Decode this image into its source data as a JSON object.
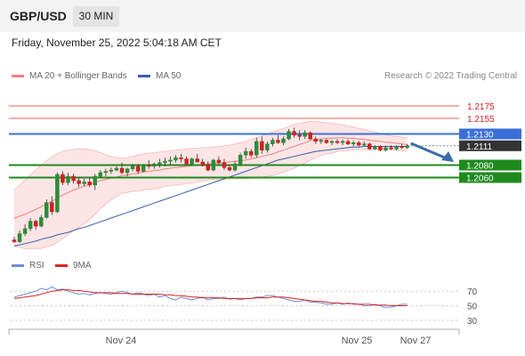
{
  "header": {
    "symbol": "GBP/USD",
    "timeframe": "30 MIN"
  },
  "datetime": "Friday, November 25, 2022 5:04:18 AM CET",
  "legend": {
    "ma20": "MA 20 + Bollinger Bands",
    "ma50": "MA 50",
    "rsi": "RSI",
    "rsi_ma": "9MA",
    "credit": "Research © 2022 Trading Central"
  },
  "colors": {
    "up": "#2e8b3a",
    "down": "#d02020",
    "ma20": "#f08080",
    "ma50": "#3a5ea8",
    "band_fill": "#fde0e0",
    "resistance": "#f08070",
    "pivot": "#3a6fd8",
    "support": "#1e8a1e",
    "current": "#333333",
    "rsi": "#6b8fd6",
    "rsi_ma": "#e02020",
    "arrow": "#3a6ea8"
  },
  "chart_data": [
    {
      "type": "candlestick",
      "symbol": "GBP/USD",
      "interval": "30 MIN",
      "ylim": [
        1.1945,
        1.2205
      ],
      "x_ticks": [
        "Nov 24",
        "Nov 25",
        "Nov 27"
      ],
      "levels": [
        {
          "value": 1.2175,
          "label": "1.2175",
          "kind": "resistance"
        },
        {
          "value": 1.2155,
          "label": "1.2155",
          "kind": "resistance"
        },
        {
          "value": 1.213,
          "label": "1.2130",
          "kind": "pivot"
        },
        {
          "value": 1.2111,
          "label": "1.2111",
          "kind": "current"
        },
        {
          "value": 1.208,
          "label": "1.2080",
          "kind": "support"
        },
        {
          "value": 1.206,
          "label": "1.2060",
          "kind": "support"
        }
      ],
      "candles": [
        [
          1.196,
          1.1965,
          1.1955,
          1.1957
        ],
        [
          1.1957,
          1.1975,
          1.1955,
          1.197
        ],
        [
          1.197,
          1.1985,
          1.1966,
          1.1978
        ],
        [
          1.1978,
          1.1995,
          1.1974,
          1.199
        ],
        [
          1.199,
          1.1992,
          1.1976,
          1.1982
        ],
        [
          1.1982,
          1.2,
          1.198,
          1.1996
        ],
        [
          1.1996,
          1.2025,
          1.1994,
          1.202
        ],
        [
          1.202,
          1.203,
          1.2,
          1.2005
        ],
        [
          1.2005,
          1.2068,
          1.2003,
          1.2065
        ],
        [
          1.2065,
          1.207,
          1.2048,
          1.2052
        ],
        [
          1.2052,
          1.2068,
          1.2048,
          1.2062
        ],
        [
          1.2062,
          1.2066,
          1.205,
          1.2055
        ],
        [
          1.2055,
          1.206,
          1.2045,
          1.205
        ],
        [
          1.205,
          1.2058,
          1.2046,
          1.2053
        ],
        [
          1.2053,
          1.206,
          1.2045,
          1.2048
        ],
        [
          1.2048,
          1.2066,
          1.204,
          1.2062
        ],
        [
          1.2062,
          1.2072,
          1.206,
          1.2068
        ],
        [
          1.2068,
          1.2074,
          1.2062,
          1.207
        ],
        [
          1.207,
          1.2076,
          1.2066,
          1.2072
        ],
        [
          1.2072,
          1.2078,
          1.207,
          1.2075
        ],
        [
          1.2075,
          1.2084,
          1.2065,
          1.2068
        ],
        [
          1.2068,
          1.2076,
          1.2062,
          1.2074
        ],
        [
          1.2074,
          1.2082,
          1.207,
          1.2078
        ],
        [
          1.2078,
          1.2082,
          1.2066,
          1.207
        ],
        [
          1.207,
          1.2082,
          1.2068,
          1.208
        ],
        [
          1.208,
          1.2088,
          1.2074,
          1.2078
        ],
        [
          1.2078,
          1.2084,
          1.2074,
          1.2082
        ],
        [
          1.2082,
          1.209,
          1.2076,
          1.2084
        ],
        [
          1.2084,
          1.2092,
          1.2078,
          1.2086
        ],
        [
          1.2086,
          1.2094,
          1.208,
          1.2088
        ],
        [
          1.2088,
          1.2096,
          1.2084,
          1.2092
        ],
        [
          1.2092,
          1.2098,
          1.2084,
          1.209
        ],
        [
          1.209,
          1.2094,
          1.208,
          1.2082
        ],
        [
          1.2082,
          1.2092,
          1.208,
          1.209
        ],
        [
          1.209,
          1.2098,
          1.2084,
          1.2085
        ],
        [
          1.2085,
          1.209,
          1.2078,
          1.208
        ],
        [
          1.208,
          1.2086,
          1.207,
          1.2072
        ],
        [
          1.2072,
          1.209,
          1.207,
          1.2088
        ],
        [
          1.2088,
          1.2094,
          1.208,
          1.2084
        ],
        [
          1.2084,
          1.209,
          1.2072,
          1.2076
        ],
        [
          1.2076,
          1.208,
          1.207,
          1.2072
        ],
        [
          1.2072,
          1.2086,
          1.207,
          1.2082
        ],
        [
          1.2082,
          1.21,
          1.208,
          1.2096
        ],
        [
          1.2096,
          1.2108,
          1.209,
          1.2102
        ],
        [
          1.2102,
          1.2106,
          1.2092,
          1.2096
        ],
        [
          1.2096,
          1.2124,
          1.2092,
          1.2118
        ],
        [
          1.2118,
          1.2126,
          1.2098,
          1.2104
        ],
        [
          1.2104,
          1.2118,
          1.21,
          1.2114
        ],
        [
          1.2114,
          1.2124,
          1.211,
          1.212
        ],
        [
          1.212,
          1.2128,
          1.2114,
          1.2116
        ],
        [
          1.2116,
          1.2126,
          1.2112,
          1.2122
        ],
        [
          1.2122,
          1.2138,
          1.212,
          1.2134
        ],
        [
          1.2134,
          1.214,
          1.2124,
          1.2128
        ],
        [
          1.2128,
          1.2136,
          1.212,
          1.2126
        ],
        [
          1.2126,
          1.2136,
          1.2122,
          1.2132
        ],
        [
          1.2132,
          1.2134,
          1.212,
          1.2122
        ],
        [
          1.2122,
          1.2126,
          1.2114,
          1.2118
        ],
        [
          1.2118,
          1.2122,
          1.2114,
          1.212
        ],
        [
          1.212,
          1.2122,
          1.2114,
          1.2116
        ],
        [
          1.2116,
          1.212,
          1.2112,
          1.2118
        ],
        [
          1.2118,
          1.2122,
          1.2114,
          1.2116
        ],
        [
          1.2116,
          1.2121,
          1.2112,
          1.2118
        ],
        [
          1.2118,
          1.2121,
          1.2112,
          1.2114
        ],
        [
          1.2114,
          1.2119,
          1.211,
          1.2116
        ],
        [
          1.2116,
          1.2119,
          1.211,
          1.2112
        ],
        [
          1.2112,
          1.2118,
          1.211,
          1.2114
        ],
        [
          1.2114,
          1.2116,
          1.2104,
          1.2106
        ],
        [
          1.2106,
          1.2112,
          1.2104,
          1.211
        ],
        [
          1.211,
          1.2112,
          1.2102,
          1.2104
        ],
        [
          1.2104,
          1.2111,
          1.2102,
          1.2108
        ],
        [
          1.2108,
          1.2112,
          1.2104,
          1.2106
        ],
        [
          1.2106,
          1.2112,
          1.2104,
          1.211
        ],
        [
          1.211,
          1.2114,
          1.2106,
          1.2108
        ],
        [
          1.2108,
          1.2114,
          1.2106,
          1.2111
        ]
      ],
      "ma20": [
        1.1995,
        1.1998,
        1.2001,
        1.2005,
        1.2009,
        1.2013,
        1.2018,
        1.2022,
        1.2027,
        1.2032,
        1.2036,
        1.204,
        1.2043,
        1.2046,
        1.2049,
        1.2052,
        1.2055,
        1.2057,
        1.2059,
        1.2061,
        1.2063,
        1.2064,
        1.2066,
        1.2067,
        1.2069,
        1.207,
        1.2071,
        1.2072,
        1.2074,
        1.2075,
        1.2076,
        1.2077,
        1.2078,
        1.2079,
        1.208,
        1.2081,
        1.2082,
        1.2083,
        1.2083,
        1.2084,
        1.2085,
        1.2086,
        1.2087,
        1.2088,
        1.209,
        1.2092,
        1.2094,
        1.2096,
        1.2098,
        1.2101,
        1.2104,
        1.2107,
        1.211,
        1.2113,
        1.2116,
        1.2119,
        1.2121,
        1.2122,
        1.2123,
        1.2123,
        1.2124,
        1.2124,
        1.2123,
        1.2123,
        1.2122,
        1.2121,
        1.212,
        1.2119,
        1.2118,
        1.2117,
        1.2116,
        1.2115,
        1.2114,
        1.2113
      ],
      "bb_upper": [
        1.204,
        1.2048,
        1.2056,
        1.2064,
        1.2072,
        1.208,
        1.2087,
        1.2093,
        1.2098,
        1.2102,
        1.2104,
        1.2105,
        1.2106,
        1.2106,
        1.2105,
        1.2103,
        1.21,
        1.2097,
        1.2094,
        1.2092,
        1.2091,
        1.2092,
        1.2094,
        1.2096,
        1.2098,
        1.2099,
        1.21,
        1.2101,
        1.2102,
        1.2103,
        1.2104,
        1.2105,
        1.2106,
        1.2107,
        1.2107,
        1.2108,
        1.2108,
        1.2109,
        1.211,
        1.2111,
        1.2112,
        1.2114,
        1.2116,
        1.2118,
        1.2121,
        1.2124,
        1.2127,
        1.213,
        1.2133,
        1.2136,
        1.2139,
        1.2142,
        1.2145,
        1.2147,
        1.2149,
        1.215,
        1.215,
        1.2149,
        1.2148,
        1.2147,
        1.2146,
        1.2145,
        1.2143,
        1.2141,
        1.2139,
        1.2137,
        1.2135,
        1.2133,
        1.2131,
        1.2129,
        1.2127,
        1.2126,
        1.2125,
        1.2124
      ],
      "bb_lower": [
        1.195,
        1.1948,
        1.1946,
        1.1946,
        1.1946,
        1.1946,
        1.1949,
        1.1951,
        1.1956,
        1.1962,
        1.1968,
        1.1975,
        1.198,
        1.1986,
        1.1993,
        1.2001,
        1.201,
        1.2017,
        1.2024,
        1.203,
        1.2035,
        1.2036,
        1.2038,
        1.2038,
        1.204,
        1.2041,
        1.2042,
        1.2043,
        1.2046,
        1.2047,
        1.2048,
        1.2049,
        1.205,
        1.2051,
        1.2053,
        1.2054,
        1.2056,
        1.2057,
        1.2056,
        1.2057,
        1.2058,
        1.2058,
        1.2058,
        1.2058,
        1.2059,
        1.206,
        1.2061,
        1.2062,
        1.2063,
        1.2066,
        1.2069,
        1.2072,
        1.2075,
        1.2079,
        1.2083,
        1.2088,
        1.2092,
        1.2095,
        1.2098,
        1.2099,
        1.2102,
        1.2103,
        1.2103,
        1.2105,
        1.2105,
        1.2105,
        1.2105,
        1.2105,
        1.2105,
        1.2105,
        1.2105,
        1.2104,
        1.2103,
        1.2102
      ],
      "ma50": [
        1.195,
        1.1952,
        1.1954,
        1.1956,
        1.1958,
        1.1961,
        1.1963,
        1.1965,
        1.1968,
        1.197,
        1.1972,
        1.1975,
        1.1978,
        1.198,
        1.1983,
        1.1986,
        1.1989,
        1.1992,
        1.1995,
        1.1998,
        1.2001,
        1.2004,
        1.2007,
        1.201,
        1.2013,
        1.2016,
        1.2019,
        1.2022,
        1.2025,
        1.2028,
        1.2031,
        1.2034,
        1.2037,
        1.204,
        1.2043,
        1.2046,
        1.2049,
        1.2052,
        1.2055,
        1.2058,
        1.2061,
        1.2064,
        1.2067,
        1.207,
        1.2073,
        1.2076,
        1.2079,
        1.2082,
        1.2085,
        1.2088,
        1.209,
        1.2092,
        1.2094,
        1.2096,
        1.2098,
        1.21,
        1.2102,
        1.2103,
        1.2104,
        1.2105,
        1.2106,
        1.2107,
        1.2108,
        1.2109,
        1.2109,
        1.211,
        1.211,
        1.211,
        1.211,
        1.211,
        1.211,
        1.211,
        1.211,
        1.211
      ],
      "forecast": {
        "from": 1.2115,
        "to": 1.2085,
        "direction": "down"
      }
    },
    {
      "type": "line",
      "name": "RSI",
      "ylim": [
        20,
        85
      ],
      "y_ticks": [
        70,
        50,
        30
      ],
      "series": [
        {
          "name": "RSI",
          "values": [
            62,
            64,
            66,
            68,
            70,
            74,
            72,
            76,
            72,
            73,
            70,
            68,
            66,
            67,
            65,
            67,
            68,
            67,
            66,
            68,
            70,
            68,
            66,
            68,
            66,
            64,
            66,
            62,
            64,
            60,
            58,
            62,
            60,
            58,
            60,
            62,
            58,
            60,
            60,
            62,
            59,
            60,
            58,
            60,
            60,
            62,
            62,
            64,
            64,
            62,
            60,
            58,
            56,
            56,
            58,
            55,
            55,
            54,
            52,
            52,
            54,
            52,
            54,
            52,
            52,
            50,
            50,
            52,
            50,
            48,
            48,
            50,
            52,
            52
          ]
        },
        {
          "name": "9MA",
          "values": [
            60,
            61,
            62,
            63,
            64,
            66,
            68,
            70,
            71,
            72,
            72,
            71,
            71,
            70,
            69,
            68,
            68,
            68,
            68,
            67,
            67,
            67,
            66,
            66,
            66,
            66,
            66,
            66,
            65,
            65,
            64,
            64,
            63,
            62,
            62,
            61,
            61,
            61,
            61,
            60,
            60,
            60,
            60,
            60,
            60,
            61,
            61,
            61,
            62,
            62,
            62,
            61,
            60,
            59,
            58,
            57,
            56,
            56,
            55,
            54,
            54,
            53,
            53,
            53,
            52,
            52,
            52,
            51,
            51,
            51,
            50,
            50,
            50,
            50
          ]
        }
      ]
    }
  ]
}
